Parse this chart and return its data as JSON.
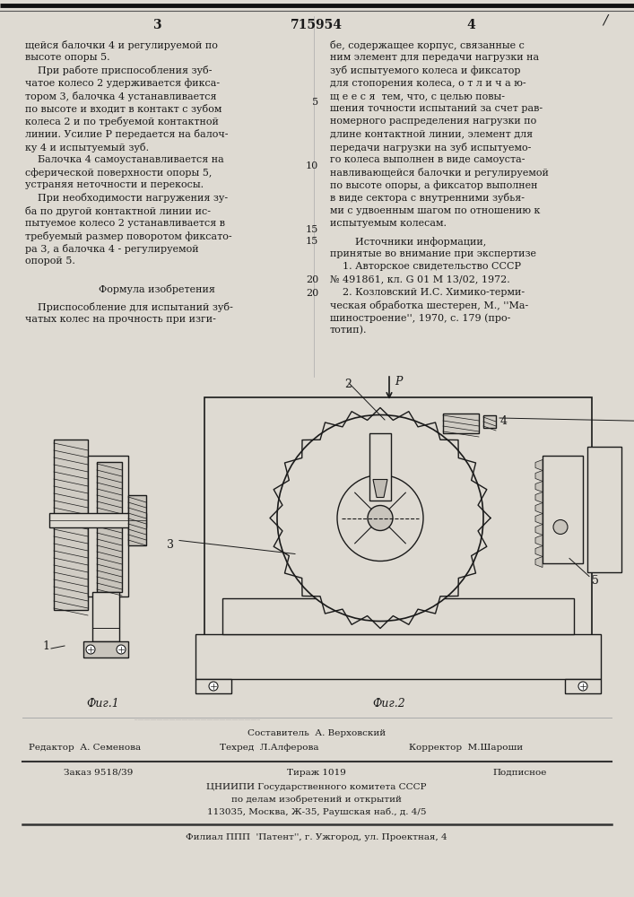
{
  "background_color": "#dedad2",
  "text_color": "#1a1a1a",
  "patent_number": "715954",
  "page_left": "3",
  "page_right": "4",
  "col1_text": [
    "щейся балочки 4 и регулируемой по",
    "высоте опоры 5.",
    "    При работе приспособления зуб-",
    "чатое колесо 2 удерживается фикса-",
    "тором 3, балочка 4 устанавливается",
    "по высоте и входит в контакт с зубом",
    "колеса 2 и по требуемой контактной",
    "линии. Усилие Р передается на балоч-",
    "ку 4 и испытуемый зуб.",
    "    Балочка 4 самоустанавливается на",
    "сферической поверхности опоры 5,",
    "устраняя неточности и перекосы.",
    "    При необходимости нагружения зу-",
    "ба по другой контактной линии ис-",
    "пытуемое колесо 2 устанавливается в",
    "требуемый размер поворотом фиксато-",
    "ра 3, а балочка 4 - регулируемой",
    "опорой 5."
  ],
  "formula_title": "Формула изобретения",
  "formula_text": [
    "    Приспособление для испытаний зуб-",
    "чатых колес на прочность при изги-"
  ],
  "col2_text": [
    "бе, содержащее корпус, связанные с",
    "ним элемент для передачи нагрузки на",
    "зуб испытуемого колеса и фиксатор",
    "для стопорения колеса, о т л и ч а ю-",
    "щ е е с я  тем, что, с целью повы-",
    "шения точности испытаний за счет рав-",
    "номерного распределения нагрузки по",
    "длине контактной линии, элемент для",
    "передачи нагрузки на зуб испытуемо-",
    "го колеса выполнен в виде самоуста-",
    "навливающейся балочки и регулируемой",
    "по высоте опоры, а фиксатор выполнен",
    "в виде сектора с внутренними зубья-",
    "ми с удвоенным шагом по отношению к",
    "испытуемым колесам."
  ],
  "sources_title": "        Источники информации,",
  "sources_text": [
    "принятые во внимание при экспертизе",
    "    1. Авторское свидетельство СССР",
    "№ 491861, кл. G 01 M 13/02, 1972.",
    "    2. Козловский И.С. Химико-терми-",
    "ческая обработка шестерен, М., ''Ма-",
    "шиностроение'', 1970, с. 179 (про-",
    "тотип)."
  ],
  "footer_sestavitel": "Составитель  А. Верховский",
  "footer_redaktor": "Редактор  А. Семенова",
  "footer_tekhred": "Техред  Л.Алферова",
  "footer_korrektor": "Корректор  М.Шароши",
  "footer_zakaz": "Заказ 9518/39",
  "footer_tirazh": "Тираж 1019",
  "footer_podpisnoe": "Подписное",
  "footer_tsniipi": "ЦНИИПИ Государственного комитета СССР",
  "footer_po_delam": "по делам изобретений и открытий",
  "footer_address": "113035, Москва, Ж-35, Раушская наб., д. 4/5",
  "footer_filial": "Филиал ППП  'Патент'', г. Ужгород, ул. Проектная, 4"
}
